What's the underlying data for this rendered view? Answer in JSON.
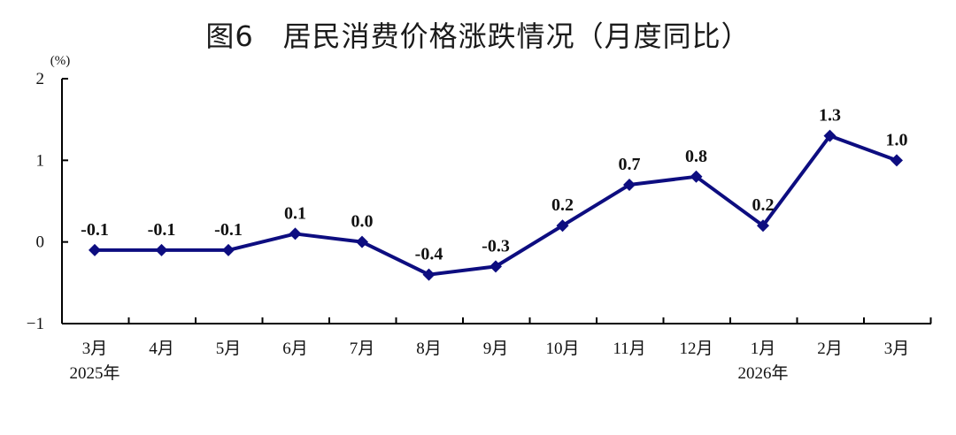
{
  "title": "图6　居民消费价格涨跌情况（月度同比）",
  "colors": {
    "series": "#0d0d80",
    "axis": "#000000",
    "text": "#111111"
  },
  "chart_data": {
    "type": "line",
    "title": "图6　居民消费价格涨跌情况（月度同比）",
    "unit": "(%)",
    "categories": [
      "3月",
      "4月",
      "5月",
      "6月",
      "7月",
      "8月",
      "9月",
      "10月",
      "11月",
      "12月",
      "1月",
      "2月",
      "3月"
    ],
    "year_labels": [
      {
        "index": 0,
        "label": "2025年"
      },
      {
        "index": 10,
        "label": "2026年"
      }
    ],
    "series": [
      {
        "values": [
          -0.1,
          -0.1,
          -0.1,
          0.1,
          0.0,
          -0.4,
          -0.3,
          0.2,
          0.7,
          0.8,
          0.2,
          1.3,
          1.0
        ]
      }
    ],
    "data_labels": [
      "-0.1",
      "-0.1",
      "-0.1",
      "0.1",
      "0.0",
      "-0.4",
      "-0.3",
      "0.2",
      "0.7",
      "0.8",
      "0.2",
      "1.3",
      "1.0"
    ],
    "ylim": [
      -1,
      2
    ],
    "yticks": [
      2,
      1,
      0,
      -1
    ],
    "ytick_labels": [
      "2",
      "1",
      "0",
      "−1"
    ],
    "marker": "diamond",
    "grid": false,
    "legend": "none"
  }
}
